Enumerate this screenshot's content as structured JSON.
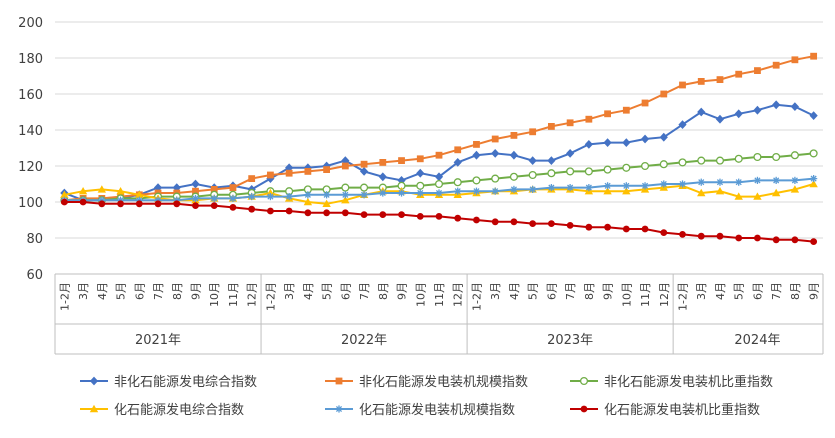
{
  "chart_data": {
    "type": "line",
    "title": "",
    "xlabel": "",
    "ylabel": "",
    "ylim": [
      60,
      200
    ],
    "yticks": [
      "60",
      "80",
      "100",
      "120",
      "140",
      "160",
      "180",
      "200"
    ],
    "grid": "horizontal",
    "legend_position": "bottom",
    "x": [
      "1-2月",
      "3月",
      "4月",
      "5月",
      "6月",
      "7月",
      "8月",
      "9月",
      "10月",
      "11月",
      "12月",
      "1-2月",
      "3月",
      "4月",
      "5月",
      "6月",
      "7月",
      "8月",
      "9月",
      "10月",
      "11月",
      "12月",
      "1-2月",
      "3月",
      "4月",
      "5月",
      "6月",
      "7月",
      "8月",
      "9月",
      "10月",
      "11月",
      "12月",
      "1-2月",
      "3月",
      "4月",
      "5月",
      "6月",
      "7月",
      "8月",
      "9月"
    ],
    "years": [
      {
        "label": "2021年",
        "start": 0,
        "end": 10
      },
      {
        "label": "2022年",
        "start": 11,
        "end": 21
      },
      {
        "label": "2023年",
        "start": 22,
        "end": 32
      },
      {
        "label": "2024年",
        "start": 33,
        "end": 41
      }
    ],
    "series": [
      {
        "name": "非化石能源发电综合指数",
        "color": "#4472c4",
        "marker": "diamond",
        "values": [
          105,
          101,
          101,
          102,
          104,
          108,
          108,
          110,
          108,
          109,
          107,
          113,
          119,
          119,
          120,
          123,
          117,
          114,
          112,
          116,
          114,
          122,
          126,
          127,
          126,
          123,
          123,
          127,
          132,
          133,
          133,
          135,
          136,
          143,
          150,
          146,
          149,
          151,
          154,
          153,
          148
        ]
      },
      {
        "name": "非化石能源发电装机规模指数",
        "color": "#ed7d31",
        "marker": "square",
        "values": [
          101,
          102,
          102,
          103,
          104,
          105,
          105,
          106,
          107,
          108,
          113,
          115,
          116,
          117,
          118,
          120,
          121,
          122,
          123,
          124,
          126,
          129,
          132,
          135,
          137,
          139,
          142,
          144,
          146,
          149,
          151,
          155,
          160,
          165,
          167,
          168,
          171,
          173,
          176,
          179,
          181
        ]
      },
      {
        "name": "非化石能源发电装机比重指数",
        "color": "#70ad47",
        "marker": "circle",
        "values": [
          101,
          101,
          101,
          102,
          102,
          103,
          103,
          103,
          104,
          104,
          105,
          106,
          106,
          107,
          107,
          108,
          108,
          108,
          109,
          109,
          110,
          111,
          112,
          113,
          114,
          115,
          116,
          117,
          117,
          118,
          119,
          120,
          121,
          122,
          123,
          123,
          124,
          125,
          125,
          126,
          127
        ]
      },
      {
        "name": "化石能源发电综合指数",
        "color": "#ffc000",
        "marker": "triangle",
        "values": [
          104,
          106,
          107,
          106,
          104,
          102,
          101,
          101,
          102,
          102,
          103,
          105,
          102,
          100,
          99,
          101,
          104,
          106,
          106,
          104,
          104,
          104,
          105,
          106,
          106,
          107,
          107,
          107,
          106,
          106,
          106,
          107,
          108,
          109,
          105,
          106,
          103,
          103,
          105,
          107,
          110
        ]
      },
      {
        "name": "化石能源发电装机规模指数",
        "color": "#5b9bd5",
        "marker": "star",
        "values": [
          101,
          101,
          101,
          101,
          101,
          101,
          101,
          102,
          102,
          102,
          103,
          103,
          103,
          104,
          104,
          104,
          104,
          105,
          105,
          105,
          105,
          106,
          106,
          106,
          107,
          107,
          108,
          108,
          108,
          109,
          109,
          109,
          110,
          110,
          111,
          111,
          111,
          112,
          112,
          112,
          113
        ]
      },
      {
        "name": "化石能源发电装机比重指数",
        "color": "#c00000",
        "marker": "circle-filled",
        "values": [
          100,
          100,
          99,
          99,
          99,
          99,
          99,
          98,
          98,
          97,
          96,
          95,
          95,
          94,
          94,
          94,
          93,
          93,
          93,
          92,
          92,
          91,
          90,
          89,
          89,
          88,
          88,
          87,
          86,
          86,
          85,
          85,
          83,
          82,
          81,
          81,
          80,
          80,
          79,
          79,
          78
        ]
      }
    ]
  }
}
